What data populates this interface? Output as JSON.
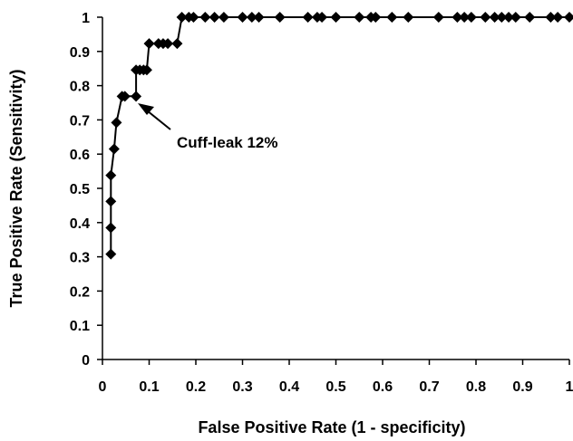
{
  "chart_data": {
    "type": "line",
    "title": "",
    "xlabel": "False Positive Rate (1 - specificity)",
    "ylabel": "True Positive Rate (Sensitivity)",
    "xlim": [
      0,
      1
    ],
    "ylim": [
      0,
      1
    ],
    "x_ticks": [
      "0",
      "0.1",
      "0.2",
      "0.3",
      "0.4",
      "0.5",
      "0.6",
      "0.7",
      "0.8",
      "0.9",
      "1"
    ],
    "y_ticks": [
      "0",
      "0.1",
      "0.2",
      "0.3",
      "0.4",
      "0.5",
      "0.6",
      "0.7",
      "0.8",
      "0.9",
      "1"
    ],
    "grid": false,
    "legend": "none",
    "marker": "diamond",
    "line_color": "#000000",
    "series": [
      {
        "x": [
          0.018,
          0.018,
          0.018,
          0.018,
          0.025,
          0.03,
          0.042,
          0.048,
          0.072,
          0.072,
          0.08,
          0.088,
          0.095,
          0.1,
          0.12,
          0.13,
          0.14,
          0.16,
          0.17,
          0.185,
          0.195,
          0.22,
          0.24,
          0.26,
          0.3,
          0.32,
          0.335,
          0.38,
          0.44,
          0.46,
          0.47,
          0.5,
          0.55,
          0.575,
          0.585,
          0.62,
          0.655,
          0.72,
          0.76,
          0.775,
          0.79,
          0.82,
          0.84,
          0.855,
          0.87,
          0.885,
          0.915,
          0.96,
          0.975,
          1.0
        ],
        "y": [
          0.308,
          0.385,
          0.462,
          0.538,
          0.615,
          0.692,
          0.769,
          0.769,
          0.769,
          0.846,
          0.846,
          0.846,
          0.846,
          0.923,
          0.923,
          0.923,
          0.923,
          0.923,
          1,
          1,
          1,
          1,
          1,
          1,
          1,
          1,
          1,
          1,
          1,
          1,
          1,
          1,
          1,
          1,
          1,
          1,
          1,
          1,
          1,
          1,
          1,
          1,
          1,
          1,
          1,
          1,
          1,
          1,
          1,
          1
        ]
      }
    ],
    "annotations": [
      {
        "text": "Cuff-leak 12%",
        "points_to": [
          0.072,
          0.769
        ]
      }
    ]
  }
}
